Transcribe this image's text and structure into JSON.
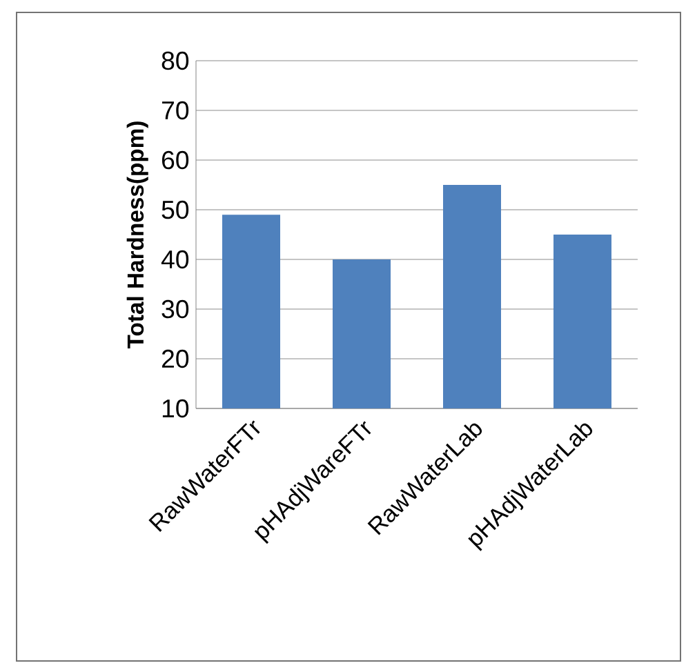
{
  "chart_data": {
    "type": "bar",
    "ylabel": "Total Hardness(ppm)",
    "categories": [
      "RawWaterFTr",
      "pHAdjWareFTr",
      "RawWaterLab",
      "pHAdjWaterLab"
    ],
    "values": [
      49,
      40,
      55,
      45
    ],
    "color": "#4f81bd",
    "ylim": [
      10,
      80
    ],
    "yticks": [
      10,
      20,
      30,
      40,
      50,
      60,
      70,
      80
    ],
    "grid": "y"
  }
}
